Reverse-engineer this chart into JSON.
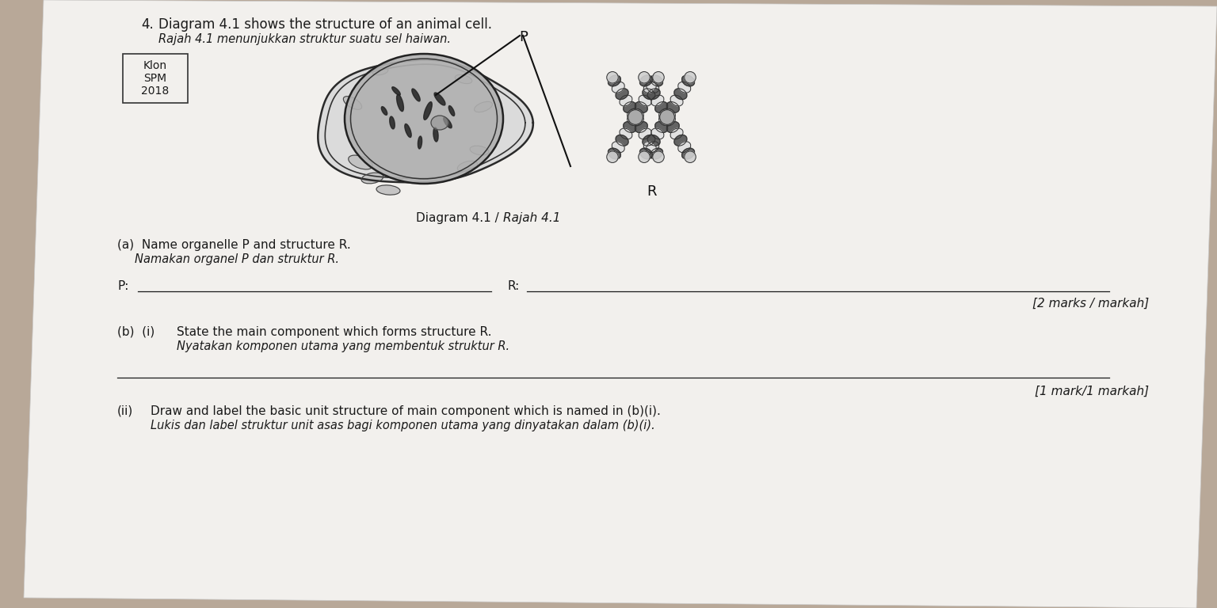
{
  "bg_color": "#b8a898",
  "paper_color": "#f2f0ed",
  "paper_color2": "#e8e6e2",
  "title_number": "4.",
  "title_text_en": "Diagram 4.1 shows the structure of an animal cell.",
  "title_text_my": "Rajah 4.1 menunjukkan struktur suatu sel haiwan.",
  "box_label_line1": "Klon",
  "box_label_line2": "SPM",
  "box_label_line3": "2018",
  "diagram_caption_en": "Diagram 4.1 / ",
  "diagram_caption_my": "Rajah 4.1",
  "label_P": "P",
  "label_R": "R",
  "q_a_en": "(a)  Name organelle P and structure R.",
  "q_a_my": "Namakan organel P dan struktur R.",
  "q_a_P": "P:",
  "q_a_R": "R:",
  "marks_a": "[2 marks / markah]",
  "q_b_i_label": "(b)  (i)",
  "q_b_i_en": "State the main component which forms structure R.",
  "q_b_i_my": "Nyatakan komponen utama yang membentuk struktur R.",
  "marks_b_i": "[1 mark/1 markah]",
  "q_b_ii_label": "(ii)",
  "q_b_ii_en": "Draw and label the basic unit structure of main component which is named in (b)(i).",
  "q_b_ii_my": "Lukis dan label struktur unit asas bagi komponen utama yang dinyatakan dalam (b)(i).",
  "font_size_title": 12,
  "font_size_body": 11,
  "font_size_italic": 10.5,
  "font_size_small": 9
}
